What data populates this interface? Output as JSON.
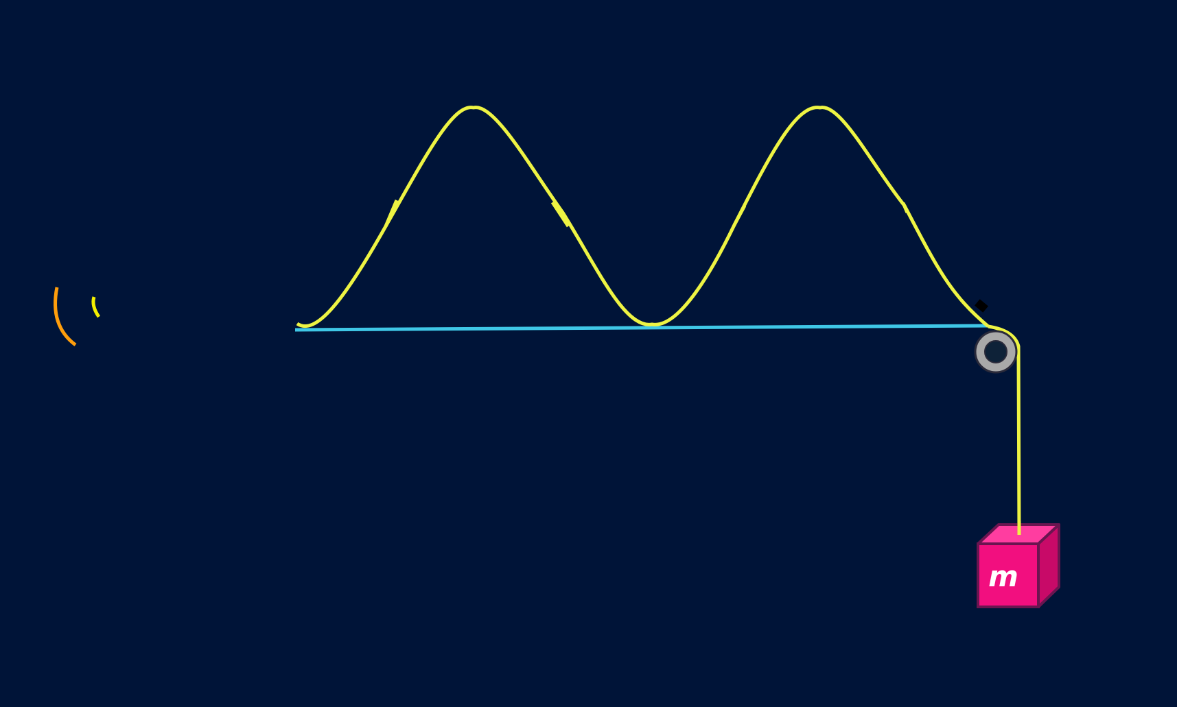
{
  "diagram": {
    "mass_label": "m",
    "colors": {
      "background": "#001438",
      "string": "#EEF443",
      "baseline": "#3FC7E6",
      "pulley_ring": "#A9A9A9",
      "pulley_center": "#0E2238",
      "block_front": "#F20F7F",
      "block_top": "#FF3DA0",
      "block_side": "#C80A68",
      "block_edge": "#6A1550",
      "wave_arc_outer": "#FF9E0C",
      "wave_arc_inner": "#F4F000",
      "clamp": "#000000"
    },
    "icons": {
      "emitter": "sound-wave-icon",
      "pulley": "pulley-icon",
      "mass": "cube-icon"
    }
  }
}
